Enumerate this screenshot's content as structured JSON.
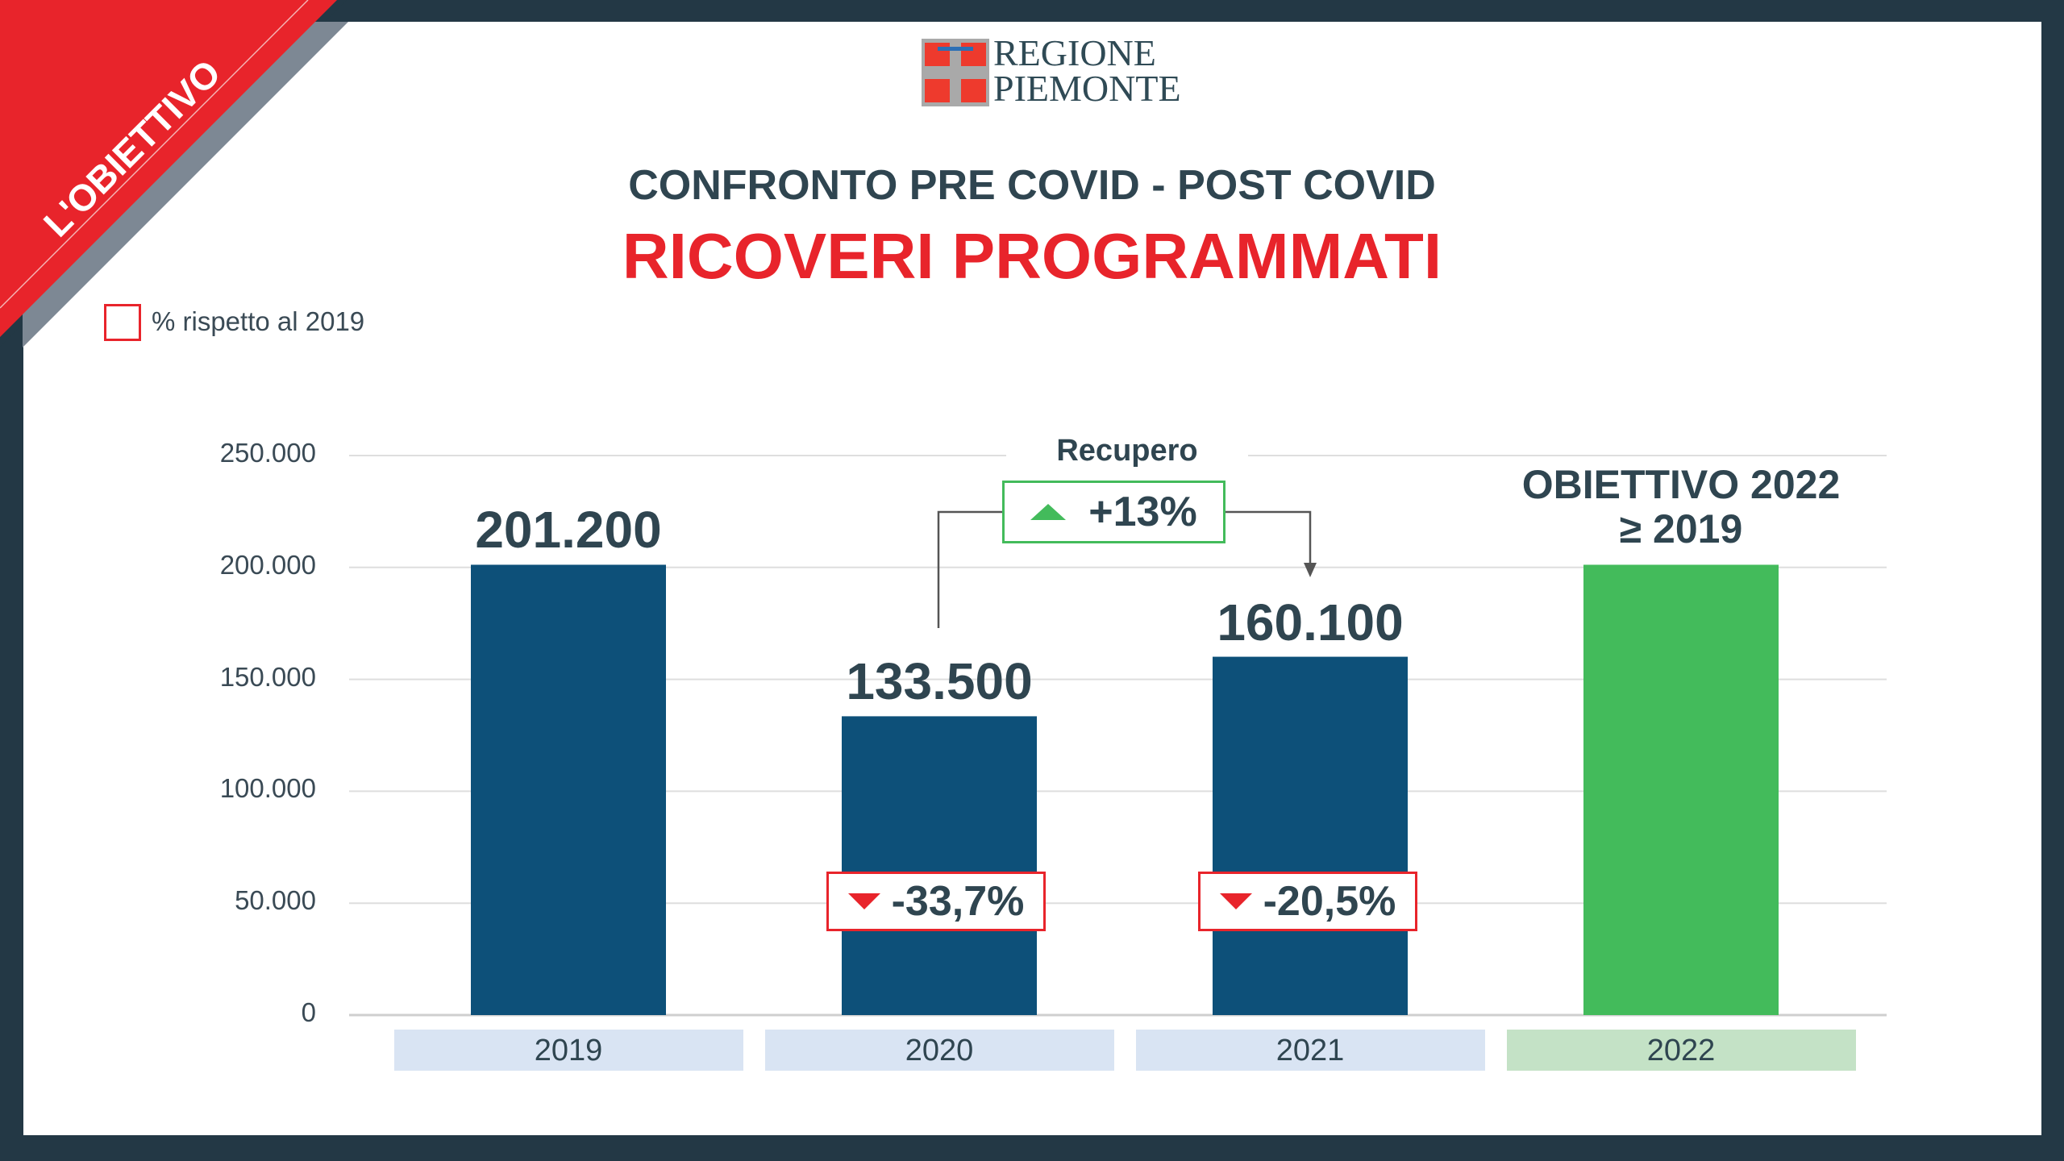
{
  "banner": {
    "label": "L'OBIETTIVO"
  },
  "logo": {
    "line1": "REGIONE",
    "line2": "PIEMONTE"
  },
  "header": {
    "subtitle": "CONFRONTO PRE COVID - POST COVID",
    "title": "RICOVERI PROGRAMMATI"
  },
  "legend": {
    "label": "% rispetto al 2019"
  },
  "annotations": {
    "recupero_label": "Recupero",
    "recupero_value": "+13%",
    "badge_2020": "-33,7%",
    "badge_2021": "-20,5%",
    "goal_line1": "OBIETTIVO 2022",
    "goal_line2": "≥ 2019"
  },
  "colors": {
    "bar": "#0d5079",
    "goal": "#43bb5b",
    "red": "#e8242b",
    "cat_bg": "#d9e4f3",
    "cat_goal_bg": "#c4e2c6"
  },
  "chart_data": {
    "type": "bar",
    "title": "RICOVERI PROGRAMMATI",
    "categories": [
      "2019",
      "2020",
      "2021",
      "2022"
    ],
    "values": [
      201200,
      133500,
      160100,
      201200
    ],
    "value_labels": [
      "201.200",
      "133.500",
      "160.100",
      ""
    ],
    "ylim": [
      0,
      250000
    ],
    "yticks": [
      0,
      50000,
      100000,
      150000,
      200000,
      250000
    ],
    "ytick_labels": [
      "0",
      "50.000",
      "100.000",
      "150.000",
      "200.000",
      "250.000"
    ],
    "grid": true,
    "xlabel": "",
    "ylabel": ""
  }
}
